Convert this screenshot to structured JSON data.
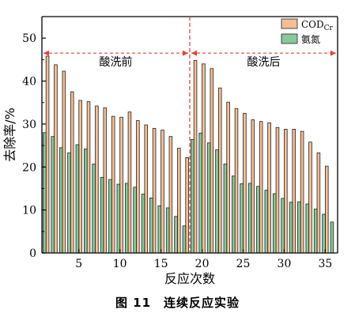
{
  "chart_data": {
    "type": "bar",
    "title": "",
    "xlabel": "反应次数",
    "ylabel": "去除率/%",
    "xlim": [
      0.5,
      36.5
    ],
    "ylim": [
      0,
      55
    ],
    "x_ticks": [
      5,
      10,
      15,
      20,
      25,
      30,
      35
    ],
    "y_ticks": [
      0,
      10,
      20,
      30,
      40,
      50
    ],
    "categories": [
      1,
      2,
      3,
      4,
      5,
      6,
      7,
      8,
      9,
      10,
      11,
      12,
      13,
      14,
      15,
      16,
      17,
      18,
      19,
      20,
      21,
      22,
      23,
      24,
      25,
      26,
      27,
      28,
      29,
      30,
      31,
      32,
      33,
      34,
      35,
      36
    ],
    "series": [
      {
        "name": "CODCr",
        "legend_main": "COD",
        "legend_sub": "Cr",
        "color": "#f5bf96",
        "values": [
          45.8,
          43.8,
          42.3,
          37.5,
          35.5,
          35.2,
          34.2,
          33.8,
          31.8,
          31.6,
          32.8,
          30.8,
          29.8,
          29.0,
          28.6,
          27.1,
          24.4,
          22.2,
          44.8,
          44.0,
          42.9,
          38.4,
          35.1,
          33.6,
          32.5,
          31.0,
          30.6,
          30.3,
          29.2,
          28.8,
          28.8,
          28.3,
          25.8,
          23.3,
          20.2,
          0
        ]
      },
      {
        "name": "氨氮",
        "color": "#86c99b",
        "values": [
          28.0,
          27.1,
          24.5,
          23.3,
          25.2,
          24.2,
          20.7,
          17.6,
          17.1,
          16.0,
          16.2,
          15.3,
          13.7,
          12.8,
          11.0,
          10.5,
          8.5,
          6.3,
          26.4,
          27.9,
          25.6,
          24.0,
          20.7,
          17.9,
          16.1,
          16.2,
          15.5,
          14.6,
          13.8,
          12.7,
          11.8,
          11.9,
          11.4,
          10.2,
          9.0,
          7.2
        ]
      }
    ],
    "divider_x": 18.5,
    "regions": [
      {
        "label": "酸洗前",
        "from": 0.5,
        "to": 18.5,
        "y": 46.5
      },
      {
        "label": "酸洗后",
        "from": 18.5,
        "to": 36.5,
        "y": 46.5
      }
    ],
    "legend_position": "top-right",
    "grid": false
  },
  "caption": "图 11　连续反应实验"
}
